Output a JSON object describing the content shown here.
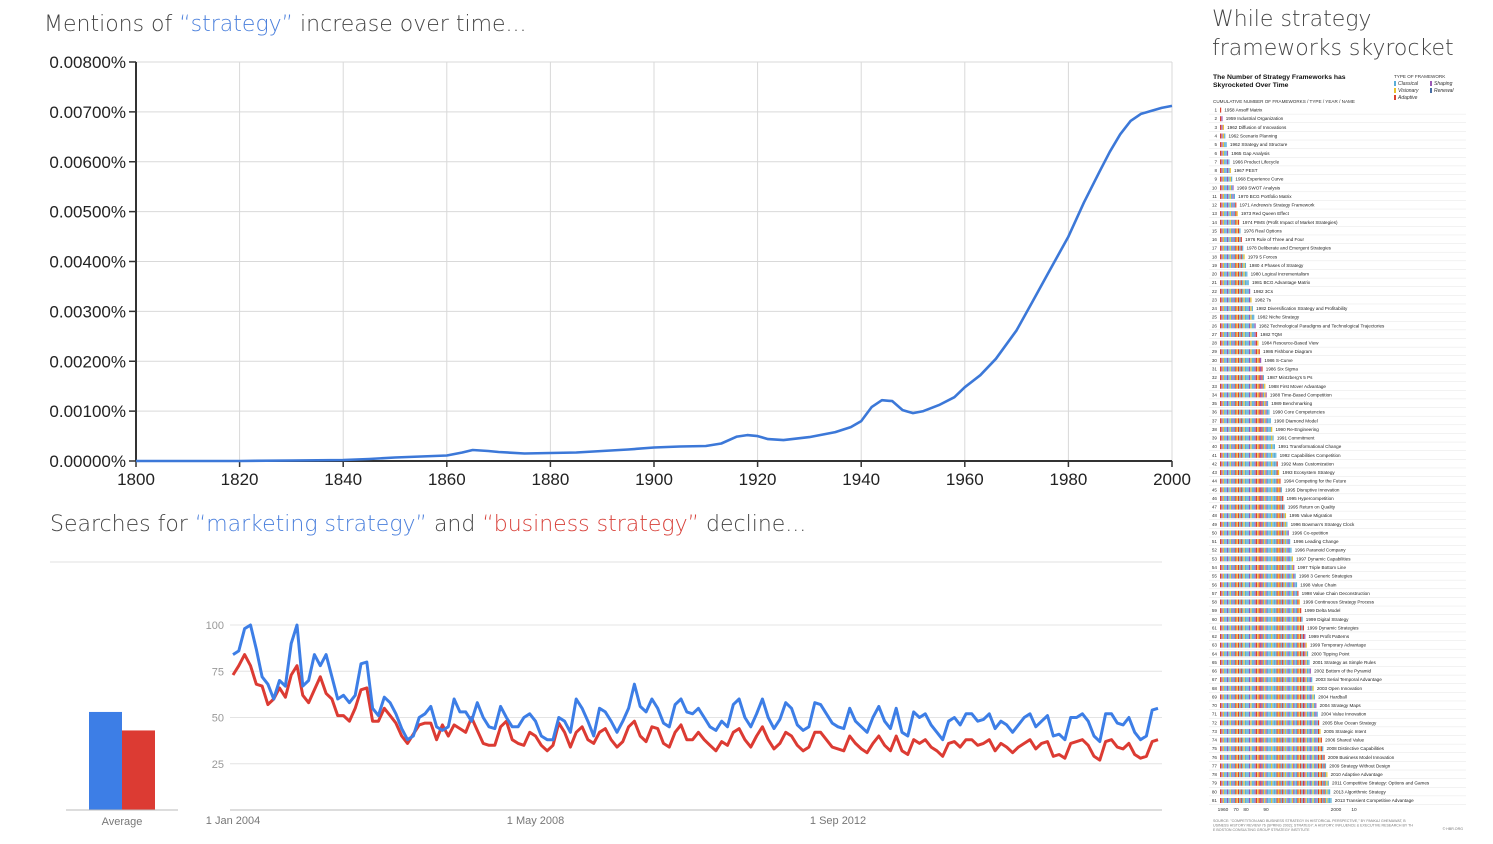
{
  "chart_data": [
    {
      "type": "line",
      "title_parts": [
        "Mentions of ",
        "“strategy”",
        " increase over time..."
      ],
      "xlim": [
        1800,
        2000
      ],
      "ylim": [
        0,
        0.008
      ],
      "x_ticks": [
        "1800",
        "1820",
        "1840",
        "1860",
        "1880",
        "1900",
        "1920",
        "1940",
        "1960",
        "1980",
        "2000"
      ],
      "y_ticks": [
        "0.00000%",
        "0.00100%",
        "0.00200%",
        "0.00300%",
        "0.00400%",
        "0.00500%",
        "0.00600%",
        "0.00700%",
        "0.00800%"
      ],
      "grid": true,
      "series": [
        {
          "color": "#3c78d8",
          "x": [
            1800,
            1810,
            1820,
            1830,
            1840,
            1845,
            1850,
            1855,
            1860,
            1863,
            1865,
            1868,
            1870,
            1875,
            1880,
            1885,
            1890,
            1895,
            1900,
            1905,
            1910,
            1913,
            1916,
            1918,
            1920,
            1922,
            1925,
            1930,
            1935,
            1938,
            1940,
            1942,
            1944,
            1946,
            1948,
            1950,
            1952,
            1955,
            1958,
            1960,
            1963,
            1966,
            1970,
            1973,
            1976,
            1980,
            1983,
            1986,
            1988,
            1990,
            1992,
            1994,
            1996,
            1998,
            2000
          ],
          "y": [
            0.0,
            0.0,
            0.0,
            1e-05,
            2e-05,
            4e-05,
            7e-05,
            9e-05,
            0.00011,
            0.00017,
            0.00022,
            0.0002,
            0.00018,
            0.00015,
            0.00016,
            0.00017,
            0.0002,
            0.00023,
            0.00027,
            0.00029,
            0.0003,
            0.00035,
            0.00049,
            0.00052,
            0.0005,
            0.00044,
            0.00042,
            0.00048,
            0.00058,
            0.00068,
            0.0008,
            0.00108,
            0.00122,
            0.0012,
            0.00102,
            0.00096,
            0.001,
            0.00112,
            0.00128,
            0.00148,
            0.00172,
            0.00205,
            0.00262,
            0.00318,
            0.00375,
            0.0045,
            0.00518,
            0.0058,
            0.0062,
            0.00655,
            0.00682,
            0.00696,
            0.00702,
            0.00708,
            0.00712
          ]
        }
      ]
    },
    {
      "type": "line",
      "title_parts": [
        "Searches for ",
        "“marketing strategy”",
        " and ",
        "“business strategy”",
        " decline..."
      ],
      "ylim": [
        0,
        100
      ],
      "y_ticks": [
        "25",
        "50",
        "75",
        "100"
      ],
      "x_ticks": [
        "1 Jan 2004",
        "1 May 2008",
        "1 Sep 2012"
      ],
      "x_tick_index": [
        0,
        52,
        104
      ],
      "series": [
        {
          "color": "#3d7ee6",
          "values": [
            84,
            86,
            98,
            100,
            87,
            72,
            68,
            60,
            70,
            67,
            90,
            100,
            67,
            70,
            84,
            78,
            84,
            72,
            60,
            62,
            58,
            62,
            79,
            80,
            55,
            51,
            61,
            58,
            52,
            44,
            38,
            40,
            50,
            52,
            56,
            45,
            43,
            45,
            60,
            53,
            53,
            48,
            58,
            50,
            45,
            44,
            56,
            50,
            45,
            45,
            50,
            52,
            48,
            40,
            38,
            38,
            50,
            48,
            42,
            60,
            55,
            48,
            40,
            55,
            53,
            48,
            42,
            48,
            55,
            68,
            56,
            53,
            60,
            55,
            47,
            45,
            57,
            60,
            53,
            52,
            55,
            50,
            45,
            43,
            48,
            45,
            57,
            60,
            50,
            45,
            52,
            60,
            50,
            44,
            49,
            58,
            55,
            46,
            43,
            45,
            58,
            57,
            52,
            47,
            45,
            44,
            55,
            48,
            45,
            42,
            50,
            56,
            48,
            44,
            55,
            42,
            40,
            53,
            50,
            52,
            46,
            42,
            38,
            48,
            50,
            46,
            52,
            52,
            48,
            49,
            52,
            44,
            48,
            46,
            42,
            46,
            50,
            52,
            45,
            48,
            51,
            40,
            41,
            38,
            50,
            50,
            52,
            48,
            40,
            37,
            52,
            52,
            47,
            46,
            50,
            42,
            38,
            40,
            54,
            55
          ],
          "avg": 53
        },
        {
          "color": "#dc3b33",
          "values": [
            73,
            78,
            84,
            78,
            68,
            67,
            57,
            60,
            66,
            61,
            73,
            78,
            62,
            58,
            65,
            72,
            63,
            60,
            51,
            51,
            48,
            55,
            65,
            66,
            48,
            48,
            55,
            51,
            47,
            40,
            36,
            41,
            46,
            47,
            47,
            38,
            46,
            40,
            46,
            44,
            42,
            50,
            43,
            36,
            35,
            35,
            45,
            48,
            38,
            36,
            35,
            42,
            40,
            35,
            32,
            35,
            47,
            42,
            34,
            42,
            45,
            38,
            36,
            42,
            44,
            38,
            34,
            37,
            45,
            48,
            40,
            37,
            45,
            44,
            36,
            34,
            42,
            46,
            38,
            38,
            42,
            38,
            35,
            32,
            37,
            35,
            42,
            44,
            38,
            34,
            40,
            45,
            38,
            33,
            36,
            42,
            40,
            35,
            32,
            34,
            42,
            42,
            38,
            34,
            33,
            32,
            40,
            36,
            33,
            31,
            36,
            40,
            35,
            32,
            40,
            32,
            30,
            38,
            36,
            38,
            34,
            32,
            29,
            36,
            37,
            34,
            38,
            38,
            35,
            36,
            38,
            32,
            36,
            34,
            31,
            34,
            36,
            38,
            33,
            36,
            37,
            29,
            30,
            28,
            36,
            37,
            38,
            35,
            29,
            27,
            37,
            38,
            34,
            33,
            36,
            30,
            28,
            29,
            37,
            38
          ],
          "avg": 43
        }
      ],
      "avg_label": "Average"
    },
    {
      "type": "bar",
      "title": "While strategy frameworks skyrocket",
      "inset_title": "The Number of Strategy Frameworks has Skyrocketed Over Time",
      "inset_header": "CUMULATIVE NUMBER OF FRAMEWORKS / TYPE / YEAR / NAME",
      "legend_title": "TYPE OF FRAMEWORK",
      "legend": [
        {
          "label": "Classical",
          "color": "#5aaed8"
        },
        {
          "label": "Shaping",
          "color": "#9b59b6"
        },
        {
          "label": "Visionary",
          "color": "#e8c12c"
        },
        {
          "label": "Renewal",
          "color": "#4a6fa5"
        },
        {
          "label": "Adaptive",
          "color": "#d9412e"
        }
      ],
      "x_ticks": [
        "1960",
        "70",
        "80",
        "90",
        "2000",
        "10"
      ],
      "source_note": "SOURCE: \"COMPETITION AND BUSINESS STRATEGY IN HISTORICAL PERSPECTIVE,\" BY PANKAJ GHEMAWAT, BUSINESS HISTORY REVIEW 76 (SPRING 2002); STRATEGY: A HISTORY; INFLUENCE & EXECUTIVE RESEARCH BY THE BOSTON CONSULTING GROUP STRATEGY INSTITUTE",
      "credit": "© HBR.ORG",
      "categories": [
        "1958 Ansoff Matrix",
        "1959 Industrial Organization",
        "1962 Diffusion of Innovations",
        "1962 Scenario Planning",
        "1962 Strategy and Structure",
        "1965 Gap Analysis",
        "1966 Product Lifecycle",
        "1967 PEST",
        "1968 Experience Curve",
        "1969 SWOT Analysis",
        "1970 BCG Portfolio Matrix",
        "1971 Andrews's Strategy Framework",
        "1973 Red Queen Effect",
        "1974 PIMS (Profit Impact of Market Strategies)",
        "1976 Real Options",
        "1976 Rule of Three and Four",
        "1978 Deliberate and Emergent Strategies",
        "1979 5 Forces",
        "1980 4 Phases of Strategy",
        "1980 Logical Incrementalism",
        "1981 BCG Advantage Matrix",
        "1982 3Cs",
        "1982 7s",
        "1982 Diversification Strategy and Profitability",
        "1982 Niche Strategy",
        "1982 Technological Paradigms and Technological Trajectories",
        "1982 TQM",
        "1984 Resource-Based View",
        "1986 Fishbone Diagram",
        "1986 S-Curve",
        "1986 Six Sigma",
        "1987 Mintzberg's 5 Ps",
        "1988 First Mover Advantage",
        "1988 Time-Based Competition",
        "1989 Benchmarking",
        "1990 Core Competencies",
        "1990 Diamond Model",
        "1990 Re-Engineering",
        "1991 Commitment",
        "1991 Transformational Change",
        "1992 Capabilities Competition",
        "1992 Mass Customization",
        "1993 Ecosystem Strategy",
        "1994 Competing for the Future",
        "1995 Disruptive Innovation",
        "1995 Hypercompetition",
        "1995 Return on Quality",
        "1995 Value Migration",
        "1996 Bowman's Strategy Clock",
        "1996 Co-opetition",
        "1996 Leading Change",
        "1996 Paranoid Company",
        "1997 Dynamic Capabilities",
        "1997 Triple Bottom Line",
        "1998 3 Generic Strategies",
        "1998 Value Chain",
        "1998 Value Chain Deconstruction",
        "1999 Continuous Strategy Process",
        "1999 Delta Model",
        "1999 Digital Strategy",
        "1999 Dynamic Strategies",
        "1999 Profit Patterns",
        "1999 Temporary Advantage",
        "2000 Tipping Point",
        "2001 Strategy as Simple Rules",
        "2002 Bottom of the Pyramid",
        "2003 Serial Temporal Advantage",
        "2003 Open Innovation",
        "2004 Hardball",
        "2004 Strategy Maps",
        "2004 Value Innovation",
        "2005 Blue Ocean Strategy",
        "2005 Strategic Intent",
        "2006 Shared Value",
        "2008 Distinctive Capabilities",
        "2009 Business Model Innovation",
        "2009 Strategy Without Design",
        "2010 Adaptive Advantage",
        "2011 Competitive Strategy: Options and Games",
        "2013 Algorithmic Strategy",
        "2013 Transient Competitive Advantage"
      ],
      "values": [
        1,
        2,
        3,
        4,
        5,
        6,
        7,
        8,
        9,
        10,
        11,
        12,
        13,
        14,
        15,
        16,
        17,
        18,
        19,
        20,
        21,
        22,
        23,
        24,
        25,
        26,
        27,
        28,
        29,
        30,
        31,
        32,
        33,
        34,
        35,
        36,
        37,
        38,
        39,
        40,
        41,
        42,
        43,
        44,
        45,
        46,
        47,
        48,
        49,
        50,
        51,
        52,
        53,
        54,
        55,
        56,
        57,
        58,
        59,
        60,
        61,
        62,
        63,
        64,
        65,
        66,
        67,
        68,
        69,
        70,
        71,
        72,
        73,
        74,
        75,
        76,
        77,
        78,
        79,
        80,
        81
      ]
    }
  ]
}
